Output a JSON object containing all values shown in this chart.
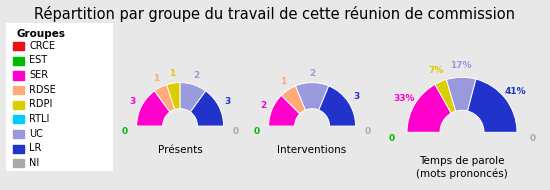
{
  "title": "Répartition par groupe du travail de cette réunion de commission",
  "groups": [
    "CRCE",
    "EST",
    "SER",
    "RDSE",
    "RDPI",
    "RTLI",
    "UC",
    "LR",
    "NI"
  ],
  "colors": [
    "#ee1111",
    "#00bb00",
    "#ff00cc",
    "#ffaa77",
    "#ddcc00",
    "#00ccff",
    "#9999dd",
    "#2233cc",
    "#aaaaaa"
  ],
  "legend_title": "Groupes",
  "charts": [
    {
      "label": "Présents",
      "values": [
        0,
        0,
        3,
        1,
        1,
        0,
        2,
        3,
        0
      ],
      "label_values": [
        "0",
        "0",
        "3",
        "1",
        "1",
        "0",
        "2",
        "3",
        "0"
      ]
    },
    {
      "label": "Interventions",
      "values": [
        0,
        0,
        2,
        1,
        0,
        0,
        2,
        3,
        0
      ],
      "label_values": [
        "0",
        "0",
        "2",
        "1",
        "0",
        "0",
        "2",
        "3",
        "0"
      ]
    },
    {
      "label": "Temps de parole\n(mots prononcés)",
      "values": [
        0,
        0,
        33,
        0,
        7,
        0,
        17,
        41,
        0
      ],
      "label_values": [
        "0%",
        "0%",
        "33%",
        "0%",
        "7%",
        "0%",
        "17%",
        "41%",
        "0%"
      ]
    }
  ],
  "background_color": "#e8e8e8",
  "title_fontsize": 10.5,
  "label_fontsize": 6.5,
  "chart_label_fontsize": 7.5,
  "legend_fontsize": 7.0,
  "legend_title_fontsize": 7.5
}
